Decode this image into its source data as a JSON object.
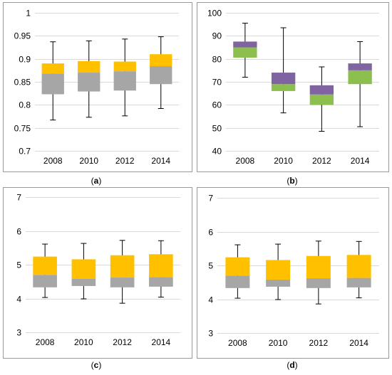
{
  "colors": {
    "gray": "#A6A6A6",
    "yellow": "#FFC000",
    "green": "#8DBF4F",
    "purple": "#8064A2",
    "grid": "#D9D9D9",
    "border": "#9A9A9A"
  },
  "chart_data": [
    {
      "type": "boxplot",
      "panel_label": "(a)",
      "categories": [
        "2008",
        "2010",
        "2012",
        "2014"
      ],
      "ylim": [
        0.7,
        1
      ],
      "yticks": [
        "0.7",
        "0.75",
        "0.8",
        "0.85",
        "0.9",
        "0.95",
        "1"
      ],
      "ytick_values": [
        0.7,
        0.75,
        0.8,
        0.85,
        0.9,
        0.95,
        1
      ],
      "grid": true,
      "lower_box_color": "gray",
      "upper_box_color": "yellow",
      "boxes": [
        {
          "min": 0.767,
          "q1": 0.823,
          "median": 0.868,
          "q3": 0.89,
          "max": 0.937
        },
        {
          "min": 0.773,
          "q1": 0.829,
          "median": 0.87,
          "q3": 0.895,
          "max": 0.939
        },
        {
          "min": 0.776,
          "q1": 0.831,
          "median": 0.873,
          "q3": 0.894,
          "max": 0.943
        },
        {
          "min": 0.792,
          "q1": 0.845,
          "median": 0.884,
          "q3": 0.91,
          "max": 0.948
        }
      ]
    },
    {
      "type": "boxplot",
      "panel_label": "(b)",
      "categories": [
        "2008",
        "2010",
        "2012",
        "2014"
      ],
      "ylim": [
        40,
        100
      ],
      "yticks": [
        "40",
        "50",
        "60",
        "70",
        "80",
        "90",
        "100"
      ],
      "ytick_values": [
        40,
        50,
        60,
        70,
        80,
        90,
        100
      ],
      "grid": true,
      "lower_box_color": "green",
      "upper_box_color": "purple",
      "boxes": [
        {
          "min": 72,
          "q1": 80.5,
          "median": 85,
          "q3": 87.5,
          "max": 95.5
        },
        {
          "min": 56.5,
          "q1": 66,
          "median": 69,
          "q3": 74,
          "max": 93.5
        },
        {
          "min": 48.5,
          "q1": 60,
          "median": 64.5,
          "q3": 68.5,
          "max": 76.5
        },
        {
          "min": 50.5,
          "q1": 69,
          "median": 75,
          "q3": 78,
          "max": 87.5
        }
      ]
    },
    {
      "type": "boxplot",
      "panel_label": "(c)",
      "categories": [
        "2008",
        "2010",
        "2012",
        "2014"
      ],
      "ylim": [
        3,
        7
      ],
      "yticks": [
        "3",
        "4",
        "5",
        "6",
        "7"
      ],
      "ytick_values": [
        3,
        4,
        5,
        6,
        7
      ],
      "grid": true,
      "lower_box_color": "gray",
      "upper_box_color": "yellow",
      "boxes": [
        {
          "min": 4.03,
          "q1": 4.33,
          "median": 4.7,
          "q3": 5.24,
          "max": 5.61
        },
        {
          "min": 3.99,
          "q1": 4.37,
          "median": 4.58,
          "q3": 5.16,
          "max": 5.63
        },
        {
          "min": 3.86,
          "q1": 4.33,
          "median": 4.62,
          "q3": 5.28,
          "max": 5.72
        },
        {
          "min": 4.04,
          "q1": 4.35,
          "median": 4.63,
          "q3": 5.31,
          "max": 5.71
        }
      ]
    },
    {
      "type": "boxplot",
      "panel_label": "(d)",
      "categories": [
        "2008",
        "2010",
        "2012",
        "2014"
      ],
      "ylim": [
        3,
        7
      ],
      "yticks": [
        "3",
        "4",
        "5",
        "6",
        "7"
      ],
      "ytick_values": [
        3,
        4,
        5,
        6,
        7
      ],
      "grid": true,
      "lower_box_color": "gray",
      "upper_box_color": "yellow",
      "boxes": [
        {
          "min": 4.03,
          "q1": 4.33,
          "median": 4.7,
          "q3": 5.24,
          "max": 5.61
        },
        {
          "min": 3.99,
          "q1": 4.37,
          "median": 4.58,
          "q3": 5.16,
          "max": 5.63
        },
        {
          "min": 3.86,
          "q1": 4.33,
          "median": 4.62,
          "q3": 5.28,
          "max": 5.72
        },
        {
          "min": 4.04,
          "q1": 4.35,
          "median": 4.63,
          "q3": 5.31,
          "max": 5.71
        }
      ]
    }
  ]
}
